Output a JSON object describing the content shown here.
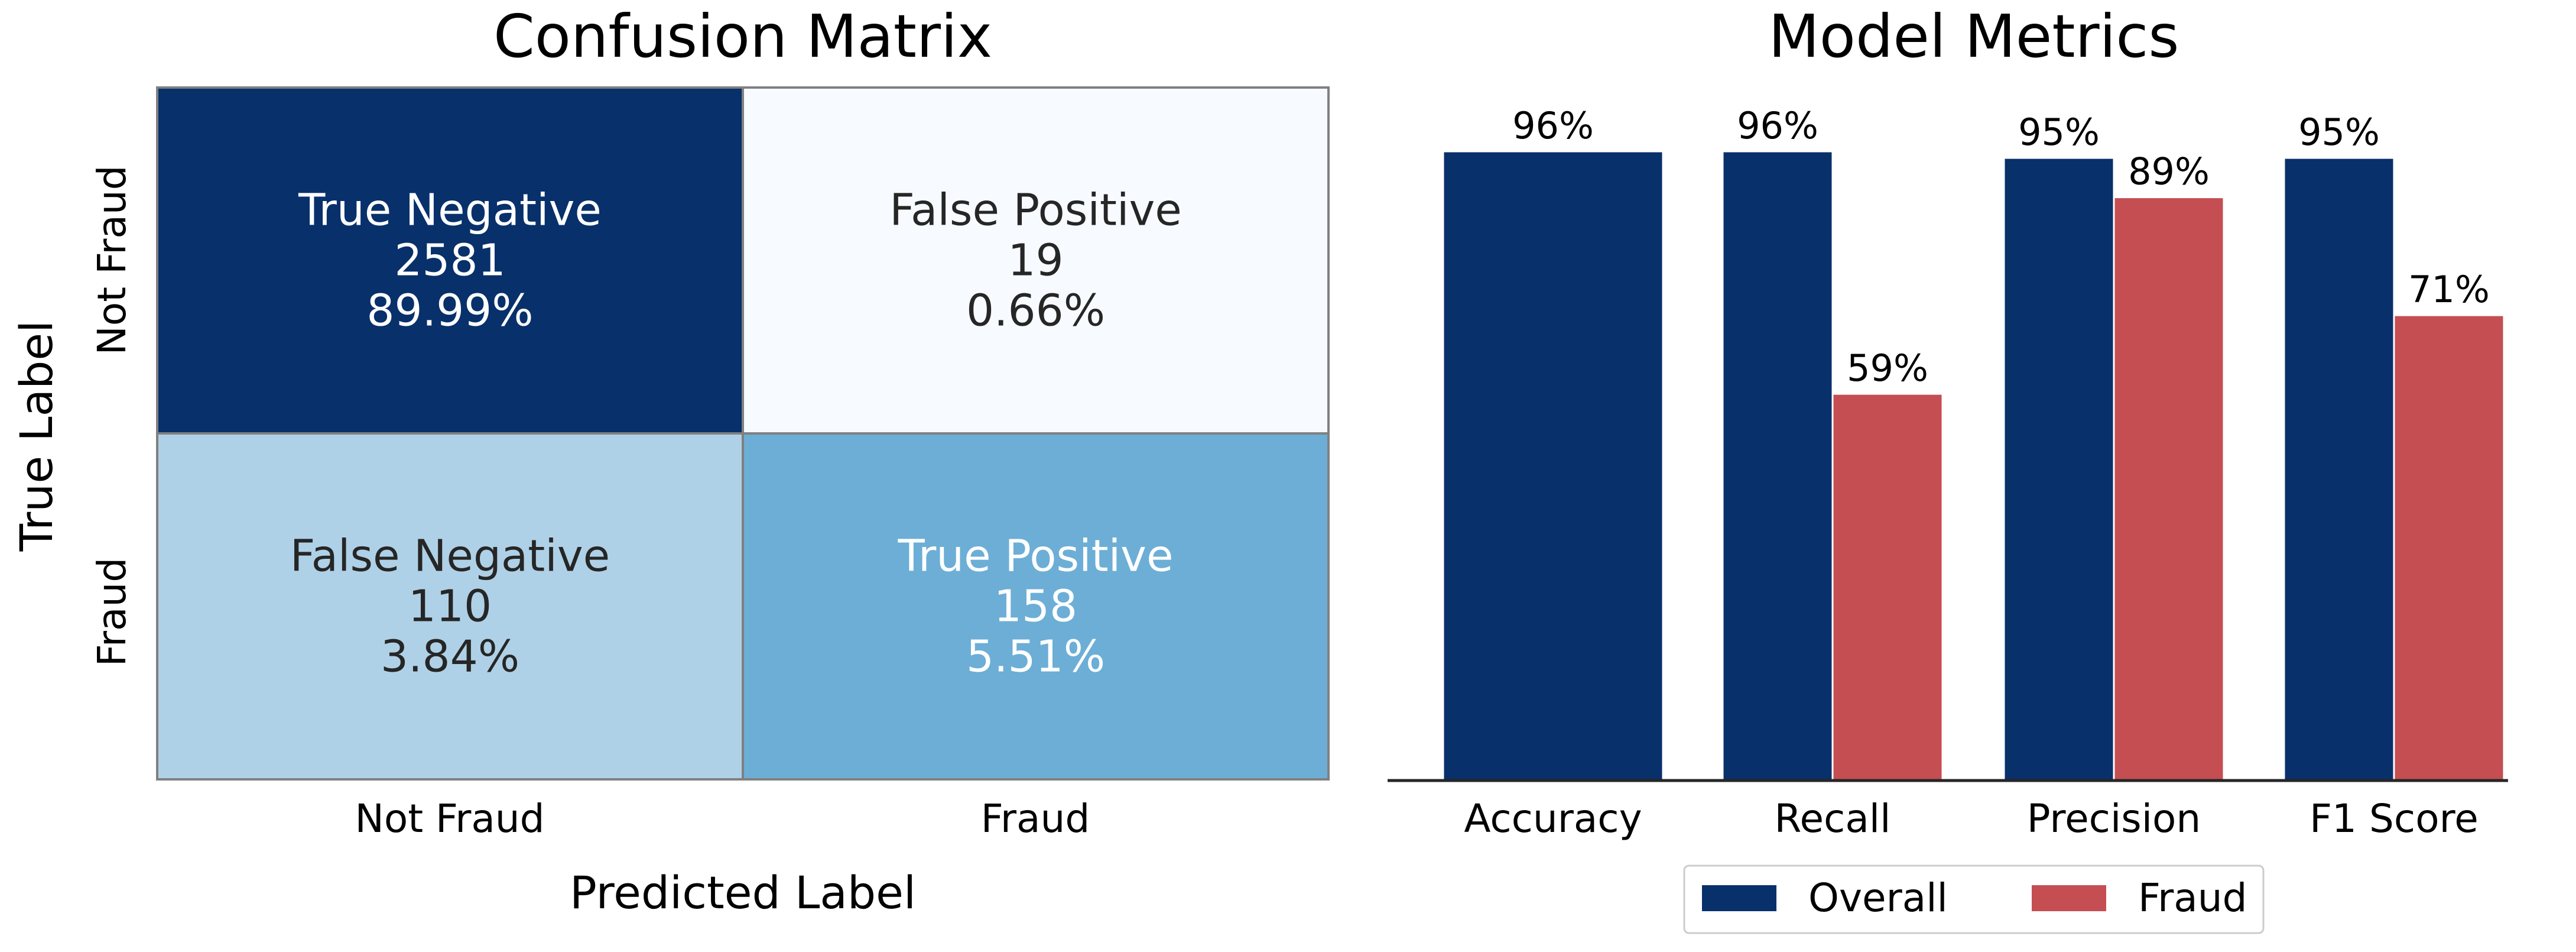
{
  "chart_data": [
    {
      "type": "heatmap",
      "title": "Confusion Matrix",
      "xlabel": "Predicted Label",
      "ylabel": "True Label",
      "x_categories": [
        "Not Fraud",
        "Fraud"
      ],
      "y_categories": [
        "Not Fraud",
        "Fraud"
      ],
      "colormap": "Blues",
      "cells": [
        {
          "row": 0,
          "col": 0,
          "name": "True Negative",
          "count": "2581",
          "percent": "89.99%",
          "value": 2581,
          "fill": "#08306b",
          "text_color": "#ffffff"
        },
        {
          "row": 0,
          "col": 1,
          "name": "False Positive",
          "count": "19",
          "percent": "0.66%",
          "value": 19,
          "fill": "#f7fbff",
          "text_color": "#262626"
        },
        {
          "row": 1,
          "col": 0,
          "name": "False Negative",
          "count": "110",
          "percent": "3.84%",
          "value": 110,
          "fill": "#afd1e7",
          "text_color": "#262626"
        },
        {
          "row": 1,
          "col": 1,
          "name": "True Positive",
          "count": "158",
          "percent": "5.51%",
          "value": 158,
          "fill": "#6caed6",
          "text_color": "#ffffff"
        }
      ]
    },
    {
      "type": "bar",
      "title": "Model Metrics",
      "xlabel": "",
      "ylabel": "",
      "ylim": [
        0,
        100
      ],
      "categories": [
        "Accuracy",
        "Recall",
        "Precision",
        "F1 Score"
      ],
      "series": [
        {
          "name": "Overall",
          "color": "#08306b",
          "values": [
            96,
            96,
            95,
            95
          ],
          "labels": [
            "96%",
            "96%",
            "95%",
            "95%"
          ]
        },
        {
          "name": "Fraud",
          "color": "#c44e52",
          "values": [
            null,
            59,
            89,
            71
          ],
          "labels": [
            "",
            "59%",
            "89%",
            "71%"
          ]
        }
      ],
      "legend": {
        "placement": "bottom-center",
        "entries": [
          "Overall",
          "Fraud"
        ]
      }
    }
  ]
}
